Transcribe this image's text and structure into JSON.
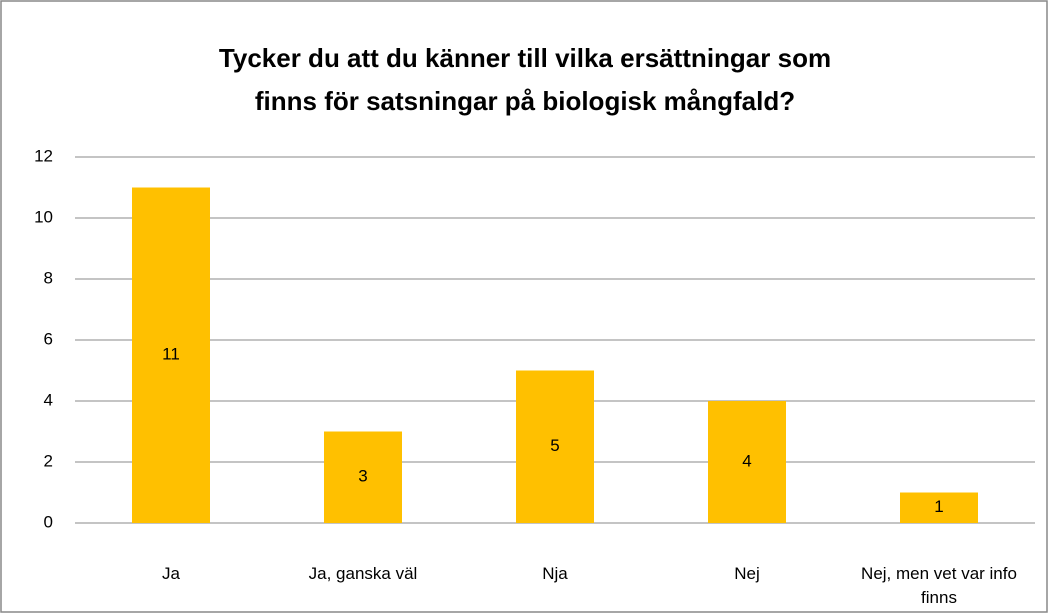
{
  "chart_data": {
    "type": "bar",
    "title": [
      "Tycker du att du känner till vilka ersättningar som",
      "finns för satsningar på biologisk mångfald?"
    ],
    "categories": [
      "Ja",
      "Ja, ganska väl",
      "Nja",
      "Nej",
      "Nej, men vet var info finns"
    ],
    "values": [
      11,
      3,
      5,
      4,
      1
    ],
    "color": "#ffc000",
    "ylim": [
      0,
      12
    ],
    "yticks": [
      0,
      2,
      4,
      6,
      8,
      10,
      12
    ],
    "grid": true
  }
}
